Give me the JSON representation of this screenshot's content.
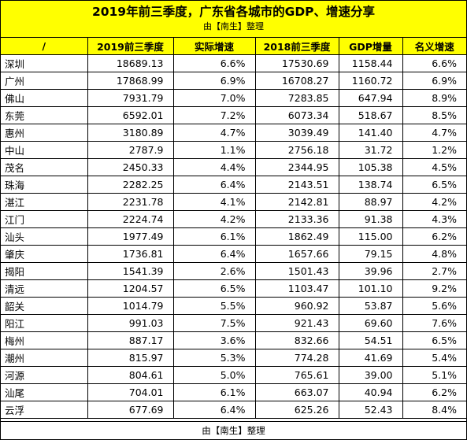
{
  "header": {
    "title": "2019年前三季度，广东省各城市的GDP、增速分享",
    "subtitle": "由【南生】整理"
  },
  "table": {
    "columns": [
      "/",
      "2019前三季度",
      "实际增速",
      "2018前三季度",
      "GDP增量",
      "名义增速"
    ],
    "rows": [
      [
        "深圳",
        "18689.13",
        "6.6%",
        "17530.69",
        "1158.44",
        "6.6%"
      ],
      [
        "广州",
        "17868.99",
        "6.9%",
        "16708.27",
        "1160.72",
        "6.9%"
      ],
      [
        "佛山",
        "7931.79",
        "7.0%",
        "7283.85",
        "647.94",
        "8.9%"
      ],
      [
        "东莞",
        "6592.01",
        "7.2%",
        "6073.34",
        "518.67",
        "8.5%"
      ],
      [
        "惠州",
        "3180.89",
        "4.7%",
        "3039.49",
        "141.40",
        "4.7%"
      ],
      [
        "中山",
        "2787.9",
        "1.1%",
        "2756.18",
        "31.72",
        "1.2%"
      ],
      [
        "茂名",
        "2450.33",
        "4.4%",
        "2344.95",
        "105.38",
        "4.5%"
      ],
      [
        "珠海",
        "2282.25",
        "6.4%",
        "2143.51",
        "138.74",
        "6.5%"
      ],
      [
        "湛江",
        "2231.78",
        "4.1%",
        "2142.81",
        "88.97",
        "4.2%"
      ],
      [
        "江门",
        "2224.74",
        "4.2%",
        "2133.36",
        "91.38",
        "4.3%"
      ],
      [
        "汕头",
        "1977.49",
        "6.1%",
        "1862.49",
        "115.00",
        "6.2%"
      ],
      [
        "肇庆",
        "1736.81",
        "6.4%",
        "1657.66",
        "79.15",
        "4.8%"
      ],
      [
        "揭阳",
        "1541.39",
        "2.6%",
        "1501.43",
        "39.96",
        "2.7%"
      ],
      [
        "清远",
        "1204.57",
        "6.5%",
        "1103.47",
        "101.10",
        "9.2%"
      ],
      [
        "韶关",
        "1014.79",
        "5.5%",
        "960.92",
        "53.87",
        "5.6%"
      ],
      [
        "阳江",
        "991.03",
        "7.5%",
        "921.43",
        "69.60",
        "7.6%"
      ],
      [
        "梅州",
        "887.17",
        "3.6%",
        "832.66",
        "54.51",
        "6.5%"
      ],
      [
        "潮州",
        "815.97",
        "5.3%",
        "774.28",
        "41.69",
        "5.4%"
      ],
      [
        "河源",
        "804.61",
        "5.0%",
        "765.61",
        "39.00",
        "5.1%"
      ],
      [
        "汕尾",
        "704.01",
        "6.1%",
        "663.07",
        "40.94",
        "6.2%"
      ],
      [
        "云浮",
        "677.69",
        "6.4%",
        "625.26",
        "52.43",
        "8.4%"
      ]
    ]
  },
  "footer": {
    "credit": "由【南生】整理"
  },
  "colors": {
    "header_bg": "#ffff00",
    "border": "#000000"
  }
}
